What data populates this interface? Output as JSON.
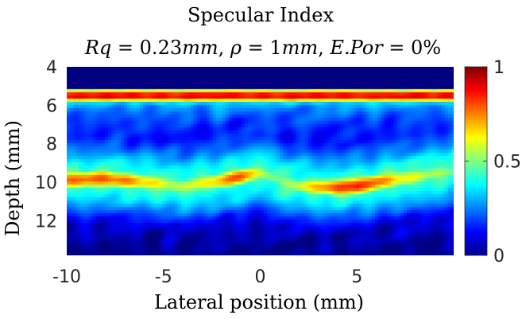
{
  "chart_data": {
    "type": "heatmap",
    "title": "Specular Index",
    "subtitle_parts": {
      "rq_var": "Rq",
      "rq_val": " = 0.23",
      "rq_unit": "mm",
      "rho_var": "ρ",
      "rho_val": " = 1",
      "rho_unit": "mm",
      "epor_var": "E.Por",
      "epor_val": " = 0%",
      "sep": ", "
    },
    "xlabel": "Lateral position (mm)",
    "ylabel": "Depth (mm)",
    "xlim": [
      -10,
      10
    ],
    "ylim": [
      4,
      13.8
    ],
    "xticks": [
      -10,
      -5,
      0,
      5
    ],
    "xtick_labels": [
      "-10",
      "-5",
      "0",
      "5"
    ],
    "yticks": [
      4,
      6,
      8,
      10,
      12
    ],
    "ytick_labels": [
      "4",
      "6",
      "8",
      "10",
      "12"
    ],
    "y_reversed": true,
    "colormap": "jet",
    "clim": [
      0,
      1
    ],
    "colorbar_ticks": [
      0,
      0.5,
      1
    ],
    "colorbar_tick_labels": [
      "0",
      "0.5",
      "1"
    ],
    "features": {
      "top_band": {
        "depth_start": 4,
        "depth_end": 5.1,
        "value": 0
      },
      "surface_echo": {
        "depth_center": 5.5,
        "peak_value": 0.9
      },
      "deep_echo_profile": {
        "x": [
          -10,
          -8,
          -6,
          -4,
          -2,
          -1,
          0,
          1,
          2,
          4,
          5,
          6,
          8,
          10
        ],
        "depth": [
          9.9,
          9.8,
          10.0,
          10.2,
          9.9,
          9.7,
          9.5,
          9.9,
          10.2,
          10.3,
          10.2,
          10.0,
          9.7,
          9.4
        ],
        "value": [
          0.78,
          0.8,
          0.68,
          0.55,
          0.7,
          0.82,
          0.55,
          0.5,
          0.58,
          0.82,
          0.88,
          0.78,
          0.6,
          0.5
        ]
      },
      "background_value": 0.12
    }
  }
}
